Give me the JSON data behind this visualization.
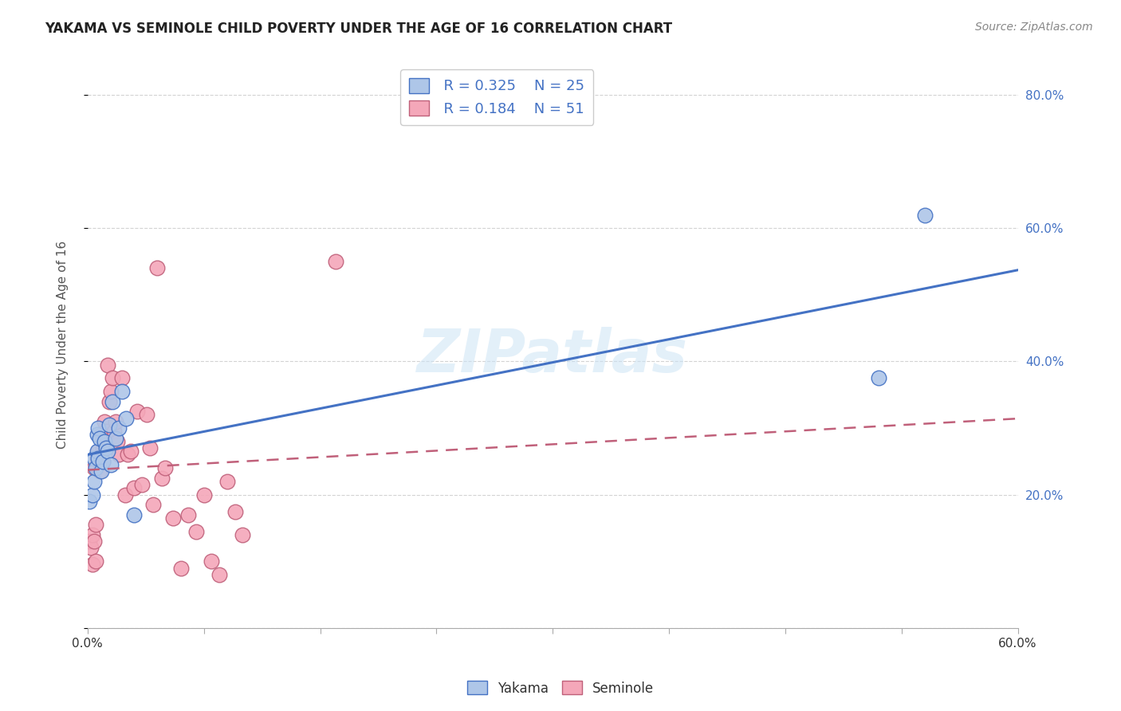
{
  "title": "YAKAMA VS SEMINOLE CHILD POVERTY UNDER THE AGE OF 16 CORRELATION CHART",
  "source": "Source: ZipAtlas.com",
  "ylabel": "Child Poverty Under the Age of 16",
  "watermark": "ZIPatlas",
  "legend_yakama_R": 0.325,
  "legend_yakama_N": 25,
  "legend_seminole_R": 0.184,
  "legend_seminole_N": 51,
  "xlim": [
    0.0,
    0.6
  ],
  "ylim": [
    0.0,
    0.85
  ],
  "xticks": [
    0.0,
    0.075,
    0.15,
    0.225,
    0.3,
    0.375,
    0.45,
    0.525,
    0.6
  ],
  "xtick_labels_show": {
    "0.0": "0.0%",
    "0.60": "60.0%"
  },
  "yticks": [
    0.0,
    0.2,
    0.4,
    0.6,
    0.8
  ],
  "ytick_labels_right": [
    "20.0%",
    "40.0%",
    "60.0%",
    "80.0%"
  ],
  "grid_color": "#d3d3d3",
  "bg_color": "#ffffff",
  "yakama_dot_color": "#aec6e8",
  "yakama_line_color": "#4472c4",
  "seminole_dot_color": "#f4a7b9",
  "seminole_line_color": "#c0607a",
  "yakama_x": [
    0.001,
    0.003,
    0.004,
    0.004,
    0.005,
    0.006,
    0.006,
    0.007,
    0.007,
    0.008,
    0.009,
    0.01,
    0.011,
    0.012,
    0.013,
    0.014,
    0.015,
    0.016,
    0.018,
    0.02,
    0.022,
    0.025,
    0.03,
    0.51,
    0.54
  ],
  "yakama_y": [
    0.19,
    0.2,
    0.22,
    0.255,
    0.24,
    0.265,
    0.29,
    0.255,
    0.3,
    0.285,
    0.235,
    0.25,
    0.28,
    0.27,
    0.265,
    0.305,
    0.245,
    0.34,
    0.285,
    0.3,
    0.355,
    0.315,
    0.17,
    0.375,
    0.62
  ],
  "seminole_x": [
    0.001,
    0.002,
    0.003,
    0.003,
    0.004,
    0.004,
    0.005,
    0.005,
    0.006,
    0.006,
    0.007,
    0.008,
    0.008,
    0.009,
    0.009,
    0.01,
    0.01,
    0.011,
    0.012,
    0.013,
    0.014,
    0.015,
    0.016,
    0.017,
    0.018,
    0.019,
    0.02,
    0.022,
    0.024,
    0.026,
    0.028,
    0.03,
    0.032,
    0.035,
    0.038,
    0.04,
    0.042,
    0.045,
    0.048,
    0.05,
    0.055,
    0.06,
    0.065,
    0.07,
    0.075,
    0.08,
    0.085,
    0.09,
    0.095,
    0.1,
    0.16
  ],
  "seminole_y": [
    0.13,
    0.12,
    0.14,
    0.095,
    0.13,
    0.24,
    0.1,
    0.155,
    0.255,
    0.24,
    0.265,
    0.25,
    0.235,
    0.26,
    0.29,
    0.27,
    0.25,
    0.31,
    0.295,
    0.395,
    0.34,
    0.355,
    0.375,
    0.295,
    0.31,
    0.28,
    0.26,
    0.375,
    0.2,
    0.26,
    0.265,
    0.21,
    0.325,
    0.215,
    0.32,
    0.27,
    0.185,
    0.54,
    0.225,
    0.24,
    0.165,
    0.09,
    0.17,
    0.145,
    0.2,
    0.1,
    0.08,
    0.22,
    0.175,
    0.14,
    0.55
  ]
}
